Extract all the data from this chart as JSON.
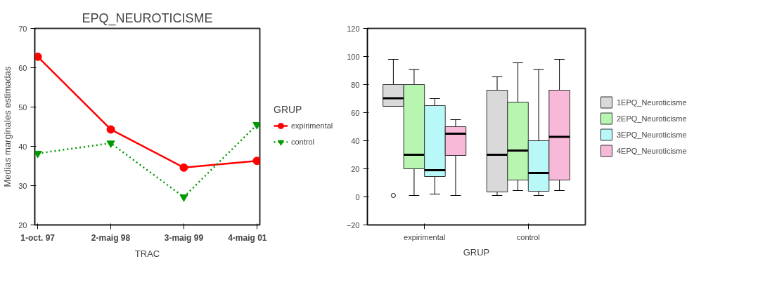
{
  "chart_data": [
    {
      "type": "line",
      "title": "EPQ_NEUROTICISME",
      "xlabel": "TRAC",
      "ylabel": "Medias marginales estimadas",
      "legend_title": "GRUP",
      "categories": [
        "1-oct. 97",
        "2-maig 98",
        "3-maig 99",
        "4-maig 01"
      ],
      "series": [
        {
          "name": "expirimental",
          "color": "#ff0000",
          "marker": "circle",
          "line_style": "solid",
          "values": [
            62.8,
            44.3,
            34.6,
            36.3
          ]
        },
        {
          "name": "control",
          "color": "#009900",
          "marker": "triangle",
          "line_style": "dotted",
          "values": [
            38.2,
            40.8,
            27.1,
            45.5
          ]
        }
      ],
      "ylim": [
        20,
        70
      ],
      "yticks": [
        20,
        30,
        40,
        50,
        60,
        70
      ],
      "grid": false,
      "legend": "right"
    },
    {
      "type": "box",
      "xlabel": "GRUP",
      "categories": [
        "expirimental",
        "control"
      ],
      "series": [
        {
          "name": "1EPQ_Neuroticisme",
          "color": "#d9d9d9",
          "boxes": [
            {
              "low": 65,
              "q1": 64.5,
              "median": 70.3,
              "q3": 80,
              "high": 98,
              "outliers": [
                1
              ]
            },
            {
              "low": 1,
              "q1": 3.5,
              "median": 30,
              "q3": 76,
              "high": 85.6
            }
          ]
        },
        {
          "name": "2EPQ_Neuroticisme",
          "color": "#b8f5b0",
          "boxes": [
            {
              "low": 1,
              "q1": 20,
              "median": 30,
              "q3": 80,
              "high": 90.7
            },
            {
              "low": 4.5,
              "q1": 12,
              "median": 33,
              "q3": 67.5,
              "high": 95.5
            }
          ]
        },
        {
          "name": "3EPQ_Neuroticisme",
          "color": "#b8f8f8",
          "boxes": [
            {
              "low": 2,
              "q1": 14.5,
              "median": 19,
              "q3": 65,
              "high": 70
            },
            {
              "low": 1,
              "q1": 4,
              "median": 17,
              "q3": 40,
              "high": 90.7
            }
          ]
        },
        {
          "name": "4EPQ_Neuroticisme",
          "color": "#f8b8d8",
          "boxes": [
            {
              "low": 1,
              "q1": 29.5,
              "median": 45,
              "q3": 50,
              "high": 55
            },
            {
              "low": 4.5,
              "q1": 12,
              "median": 42.7,
              "q3": 76,
              "high": 98
            }
          ]
        }
      ],
      "ylim": [
        -20,
        120
      ],
      "yticks": [
        -20,
        0,
        20,
        40,
        60,
        80,
        100,
        120
      ],
      "grid": false,
      "legend": "right"
    }
  ]
}
